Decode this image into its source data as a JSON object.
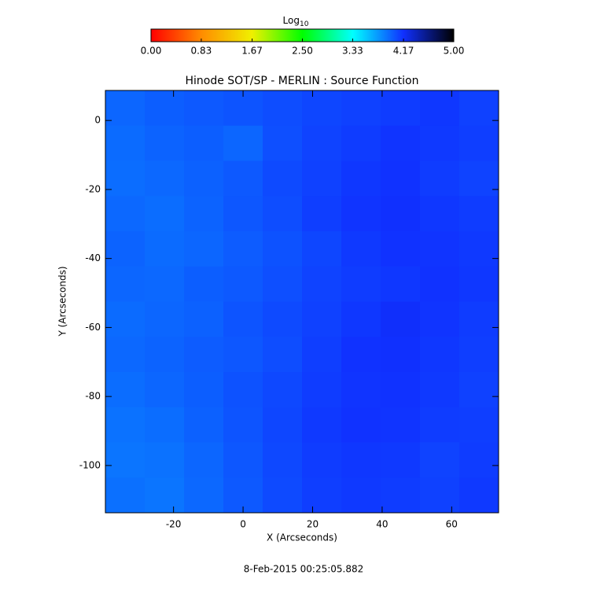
{
  "chart_data": {
    "type": "heatmap",
    "title": "Hinode SOT/SP - MERLIN : Source Function",
    "x_label": "X (Arcseconds)",
    "y_label": "Y (Arcseconds)",
    "footer": "8-Feb-2015 00:25:05.882",
    "colorbar_title": "Log",
    "colorbar_title_sub": "10",
    "colormap": [
      "#ff0000",
      "#ff8c00",
      "#f0f000",
      "#00ff00",
      "#00ffff",
      "#1030ff",
      "#000000"
    ],
    "zlim": [
      0,
      5
    ],
    "zticks": [
      {
        "value": 0,
        "label": "0.00"
      },
      {
        "value": 0.83,
        "label": "0.83"
      },
      {
        "value": 1.67,
        "label": "1.67"
      },
      {
        "value": 2.5,
        "label": "2.50"
      },
      {
        "value": 3.33,
        "label": "3.33"
      },
      {
        "value": 4.17,
        "label": "4.17"
      },
      {
        "value": 5,
        "label": "5.00"
      }
    ],
    "xlim": [
      -39.6,
      73.5
    ],
    "ylim": [
      -113.7,
      8.7
    ],
    "xticks": [
      -20,
      0,
      20,
      40,
      60
    ],
    "yticks": [
      0,
      -20,
      -40,
      -60,
      -80,
      -100
    ],
    "z": [
      [
        3.95,
        3.98,
        4.0,
        4.02,
        4.05,
        4.08,
        4.1,
        4.12,
        4.14,
        4.1
      ],
      [
        3.93,
        3.96,
        3.98,
        3.95,
        4.04,
        4.09,
        4.12,
        4.15,
        4.13,
        4.11
      ],
      [
        3.92,
        3.94,
        3.97,
        4.0,
        4.06,
        4.1,
        4.14,
        4.16,
        4.12,
        4.09
      ],
      [
        3.94,
        3.92,
        3.96,
        4.01,
        4.05,
        4.11,
        4.15,
        4.17,
        4.14,
        4.12
      ],
      [
        3.96,
        3.93,
        3.95,
        3.99,
        4.03,
        4.08,
        4.13,
        4.16,
        4.15,
        4.13
      ],
      [
        3.95,
        3.94,
        3.98,
        4.0,
        4.04,
        4.09,
        4.12,
        4.14,
        4.16,
        4.14
      ],
      [
        3.93,
        3.95,
        3.97,
        4.02,
        4.06,
        4.1,
        4.14,
        4.18,
        4.15,
        4.12
      ],
      [
        3.94,
        3.96,
        3.99,
        4.01,
        4.05,
        4.11,
        4.16,
        4.17,
        4.14,
        4.11
      ],
      [
        3.92,
        3.95,
        3.98,
        4.03,
        4.07,
        4.12,
        4.15,
        4.16,
        4.13,
        4.1
      ],
      [
        3.9,
        3.92,
        3.97,
        4.02,
        4.08,
        4.13,
        4.16,
        4.15,
        4.12,
        4.11
      ],
      [
        3.89,
        3.9,
        3.95,
        4.01,
        4.07,
        4.12,
        4.14,
        4.13,
        4.09,
        4.12
      ],
      [
        3.91,
        3.89,
        3.94,
        4.0,
        4.06,
        4.11,
        4.13,
        4.12,
        4.1,
        4.13
      ]
    ]
  }
}
